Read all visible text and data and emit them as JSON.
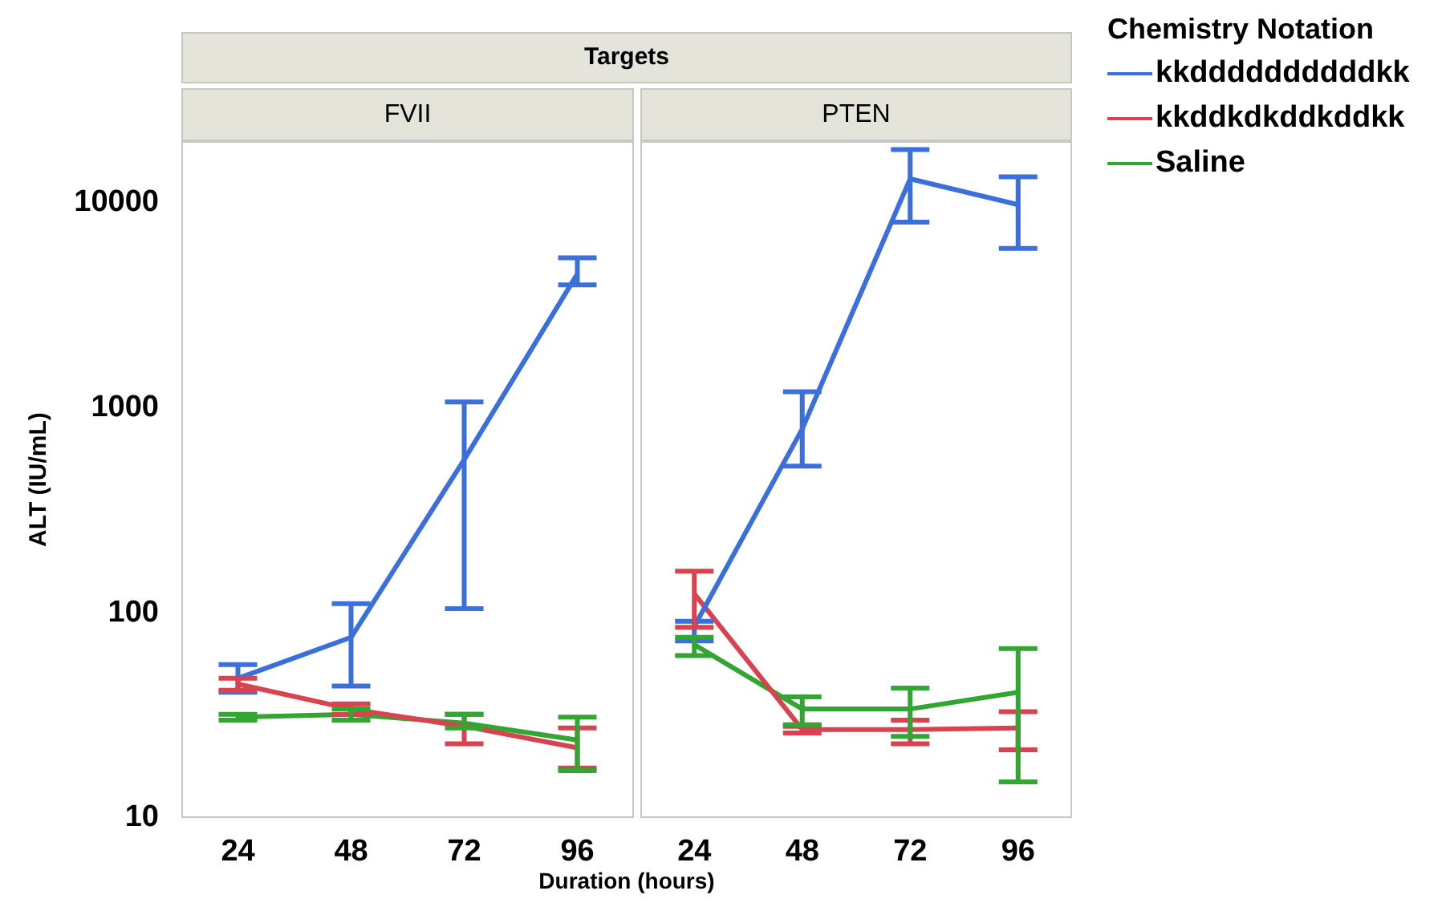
{
  "chart_data": [
    {
      "type": "line",
      "title": "Targets",
      "subtitle": "FVII",
      "xlabel": "Duration (hours)",
      "ylabel": "ALT (IU/mL)",
      "categories": [
        "24",
        "48",
        "72",
        "96"
      ],
      "log": true,
      "ylim": [
        10,
        20000
      ],
      "yticks": [
        10,
        100,
        1000,
        10000
      ],
      "grid": false,
      "legend": false,
      "marker": "none",
      "line_style": "solid",
      "series": [
        {
          "color": "#3a6fdc",
          "values": [
            48,
            76,
            560,
            4500
          ],
          "errors": [
            [
              41,
              56
            ],
            [
              44,
              111
            ],
            [
              105,
              1070
            ],
            [
              3980,
              5400
            ]
          ]
        },
        {
          "color": "#d9434f",
          "values": [
            45,
            34,
            28,
            22
          ],
          "errors": [
            [
              42,
              48
            ],
            [
              32,
              36
            ],
            [
              23,
              32
            ],
            [
              17.5,
              27.5
            ]
          ]
        },
        {
          "color": "#33a532",
          "values": [
            31,
            32,
            29,
            24
          ],
          "errors": [
            [
              30,
              32
            ],
            [
              30,
              34
            ],
            [
              27.5,
              32
            ],
            [
              17,
              31
            ]
          ]
        }
      ]
    },
    {
      "type": "line",
      "subtitle": "PTEN",
      "categories": [
        "24",
        "48",
        "72",
        "96"
      ],
      "log": true,
      "ylim": [
        10,
        20000
      ],
      "tick_labels": "x",
      "grid": false,
      "legend": "right",
      "legend_title": "Chemistry Notation",
      "marker": "none",
      "line_style": "solid",
      "series": [
        {
          "name": "kkddddddddddkk",
          "color": "#3a6fdc",
          "values": [
            86,
            790,
            13100,
            9800
          ],
          "errors": [
            [
              73,
              91
            ],
            [
              520,
              1200
            ],
            [
              8050,
              18200
            ],
            [
              6000,
              13400
            ]
          ]
        },
        {
          "name": "kkddkdkddkddkk",
          "color": "#d9434f",
          "values": [
            124,
            27,
            27,
            27.5
          ],
          "errors": [
            [
              85,
              160
            ],
            [
              26,
              28
            ],
            [
              23,
              30
            ],
            [
              21.5,
              33
            ]
          ]
        },
        {
          "name": "Saline",
          "color": "#33a532",
          "values": [
            70,
            34,
            34,
            41
          ],
          "errors": [
            [
              62,
              76
            ],
            [
              28.5,
              39
            ],
            [
              25,
              43
            ],
            [
              15,
              67
            ]
          ]
        }
      ]
    }
  ]
}
